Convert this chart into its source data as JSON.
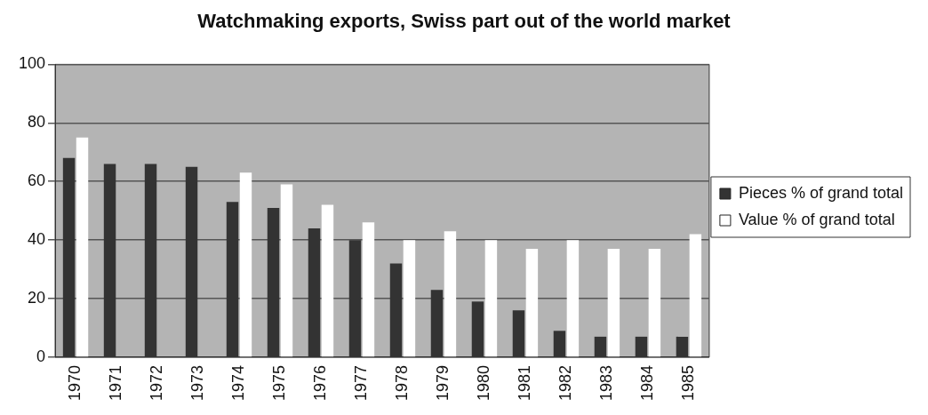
{
  "chart_data": {
    "type": "bar",
    "title": "Watchmaking exports, Swiss part out of the world market",
    "categories": [
      "1970",
      "1971",
      "1972",
      "1973",
      "1974",
      "1975",
      "1976",
      "1977",
      "1978",
      "1979",
      "1980",
      "1981",
      "1982",
      "1983",
      "1984",
      "1985"
    ],
    "series": [
      {
        "name": "Pieces % of grand total",
        "color": "#333333",
        "values": [
          68,
          66,
          66,
          65,
          53,
          51,
          44,
          40,
          32,
          23,
          19,
          16,
          9,
          7,
          7,
          7
        ]
      },
      {
        "name": "Value % of grand total",
        "color": "#ffffff",
        "values": [
          75,
          null,
          null,
          null,
          63,
          59,
          52,
          46,
          40,
          43,
          40,
          37,
          40,
          37,
          37,
          42
        ]
      }
    ],
    "ylim": [
      0,
      100
    ],
    "yticks": [
      0,
      20,
      40,
      60,
      80,
      100
    ],
    "grid": "y",
    "legend": "right"
  }
}
